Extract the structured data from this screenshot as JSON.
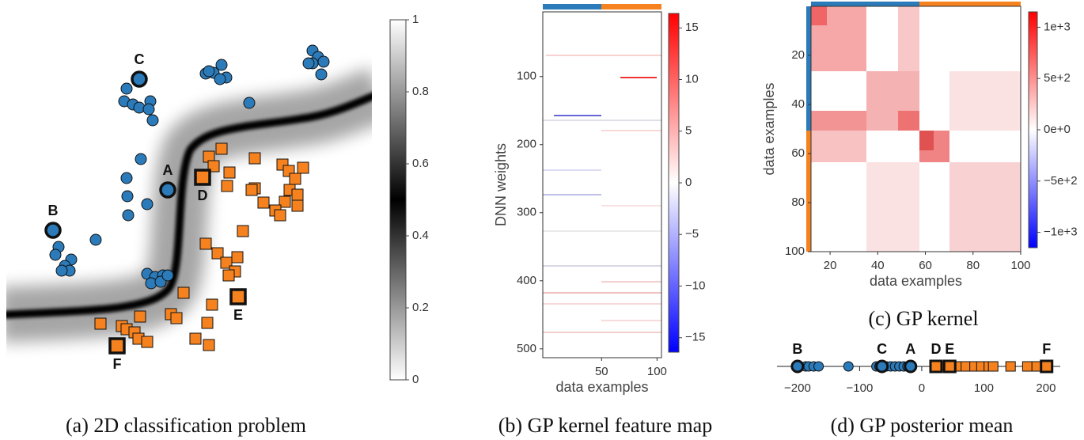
{
  "chart_data": [
    {
      "type": "scatter",
      "title": "(a) 2D classification problem",
      "xlim": [
        0,
        462
      ],
      "ylim": [
        0,
        475
      ],
      "series": [
        {
          "color": "#2b7bba",
          "marker": "circle",
          "x": [
            152,
            149,
            160,
            168,
            182,
            180,
            185,
            252,
            262,
            272,
            278,
            270,
            256,
            387,
            394,
            401,
            387,
            398,
            382,
            307,
            170,
            152,
            153,
            178,
            154,
            66,
            62,
            82,
            74,
            80,
            70,
            113,
            178,
            188,
            198,
            183,
            195,
            204
          ],
          "values": [
            373,
            357,
            353,
            349,
            357,
            347,
            333,
            392,
            393,
            403,
            387,
            385,
            395,
            421,
            413,
            407,
            405,
            391,
            405,
            355,
            284,
            260,
            237,
            227,
            213,
            173,
            163,
            157,
            149,
            143,
            143,
            182,
            139,
            135,
            137,
            127,
            129,
            137
          ],
          "annotations": [
            {
              "text": "C",
              "x": 168,
              "y": 385
            },
            {
              "text": "A",
              "x": 204,
              "y": 245
            },
            {
              "text": "B",
              "x": 59,
              "y": 194
            }
          ]
        },
        {
          "color": "#f5821f",
          "marker": "square",
          "x": [
            256,
            272,
            262,
            282,
            279,
            314,
            349,
            357,
            375,
            365,
            358,
            368,
            352,
            340,
            368,
            325,
            314,
            310,
            346,
            299,
            252,
            267,
            292,
            278,
            289,
            281,
            224,
            260,
            208,
            215,
            254,
            239,
            256,
            169,
            146,
            152,
            162,
            167,
            178,
            119
          ],
          "values": [
            287,
            297,
            275,
            267,
            250,
            285,
            277,
            269,
            273,
            259,
            245,
            239,
            230,
            219,
            225,
            229,
            247,
            245,
            213,
            193,
            177,
            165,
            160,
            153,
            142,
            137,
            115,
            100,
            88,
            83,
            77,
            57,
            49,
            85,
            73,
            69,
            65,
            57,
            53,
            76
          ],
          "annotations": [
            {
              "text": "D",
              "x": 248,
              "y": 261
            },
            {
              "text": "E",
              "x": 293,
              "y": 110
            },
            {
              "text": "F",
              "x": 140,
              "y": 48
            }
          ]
        }
      ],
      "colorbar": {
        "clim": [
          0,
          1
        ],
        "ticks": [
          0,
          0.2,
          0.4,
          0.6,
          0.8,
          1
        ],
        "colors": [
          "#ffffff",
          "#000000",
          "#ffffff"
        ]
      }
    },
    {
      "type": "heatmap",
      "title": "(b) GP kernel feature map",
      "xlabel": "data examples",
      "ylabel": "DNN weights",
      "xlim": [
        -3,
        104
      ],
      "ylim": [
        513,
        5
      ],
      "xticks": [
        50,
        100
      ],
      "yticks": [
        100,
        200,
        300,
        400,
        500
      ],
      "colorbar": {
        "clim": [
          -16.4,
          16.4
        ],
        "colors": [
          "#0000ff",
          "#ffffff",
          "#ff0000"
        ],
        "ticks": [
          {
            "value": -15,
            "label": "−15"
          },
          {
            "value": -10,
            "label": "−10"
          },
          {
            "value": -5,
            "label": "−5"
          },
          0,
          5,
          10,
          15
        ]
      }
    },
    {
      "type": "heatmap",
      "title": "(c) GP kernel",
      "xlabel": "data examples",
      "ylabel": "data examples",
      "xlim": [
        12,
        100
      ],
      "ylim": [
        100,
        0
      ],
      "xticks": [
        20,
        40,
        60,
        80,
        100
      ],
      "yticks": [
        20,
        40,
        60,
        80,
        100
      ],
      "colorbar": {
        "clim": [
          -1150,
          1150
        ],
        "colors": [
          "#0000ff",
          "#ffffff",
          "#ff0000"
        ],
        "ticks": [
          {
            "value": -1000,
            "label": "−1e+3"
          },
          {
            "value": -500,
            "label": "−5e+2"
          },
          {
            "value": 0,
            "label": "0e+0"
          },
          {
            "value": 500,
            "label": "5e+2"
          },
          {
            "value": 1000,
            "label": "1e+3"
          }
        ]
      }
    },
    {
      "type": "strip",
      "title": "(d) GP posterior mean",
      "xlim": [
        -233,
        223
      ],
      "xticks": [
        {
          "value": -200,
          "label": "−200"
        },
        {
          "value": -100,
          "label": "−100"
        },
        0,
        100,
        200
      ],
      "series": [
        {
          "color": "#2b7bba",
          "marker": "circle",
          "values": [
            -196,
            -187,
            -182,
            -174,
            -166,
            -118,
            -73,
            -68,
            -57,
            -50,
            -43,
            -36,
            -29,
            -23
          ],
          "annotations": [
            {
              "text": "B",
              "value": -200
            },
            {
              "text": "C",
              "value": -64
            },
            {
              "text": "A",
              "value": -18
            }
          ]
        },
        {
          "color": "#f5821f",
          "marker": "square",
          "values": [
            29,
            57,
            71,
            85,
            96,
            108,
            115,
            143,
            170,
            185
          ],
          "annotations": [
            {
              "text": "D",
              "value": 23
            },
            {
              "text": "E",
              "value": 45
            },
            {
              "text": "F",
              "value": 201
            }
          ]
        }
      ]
    }
  ]
}
